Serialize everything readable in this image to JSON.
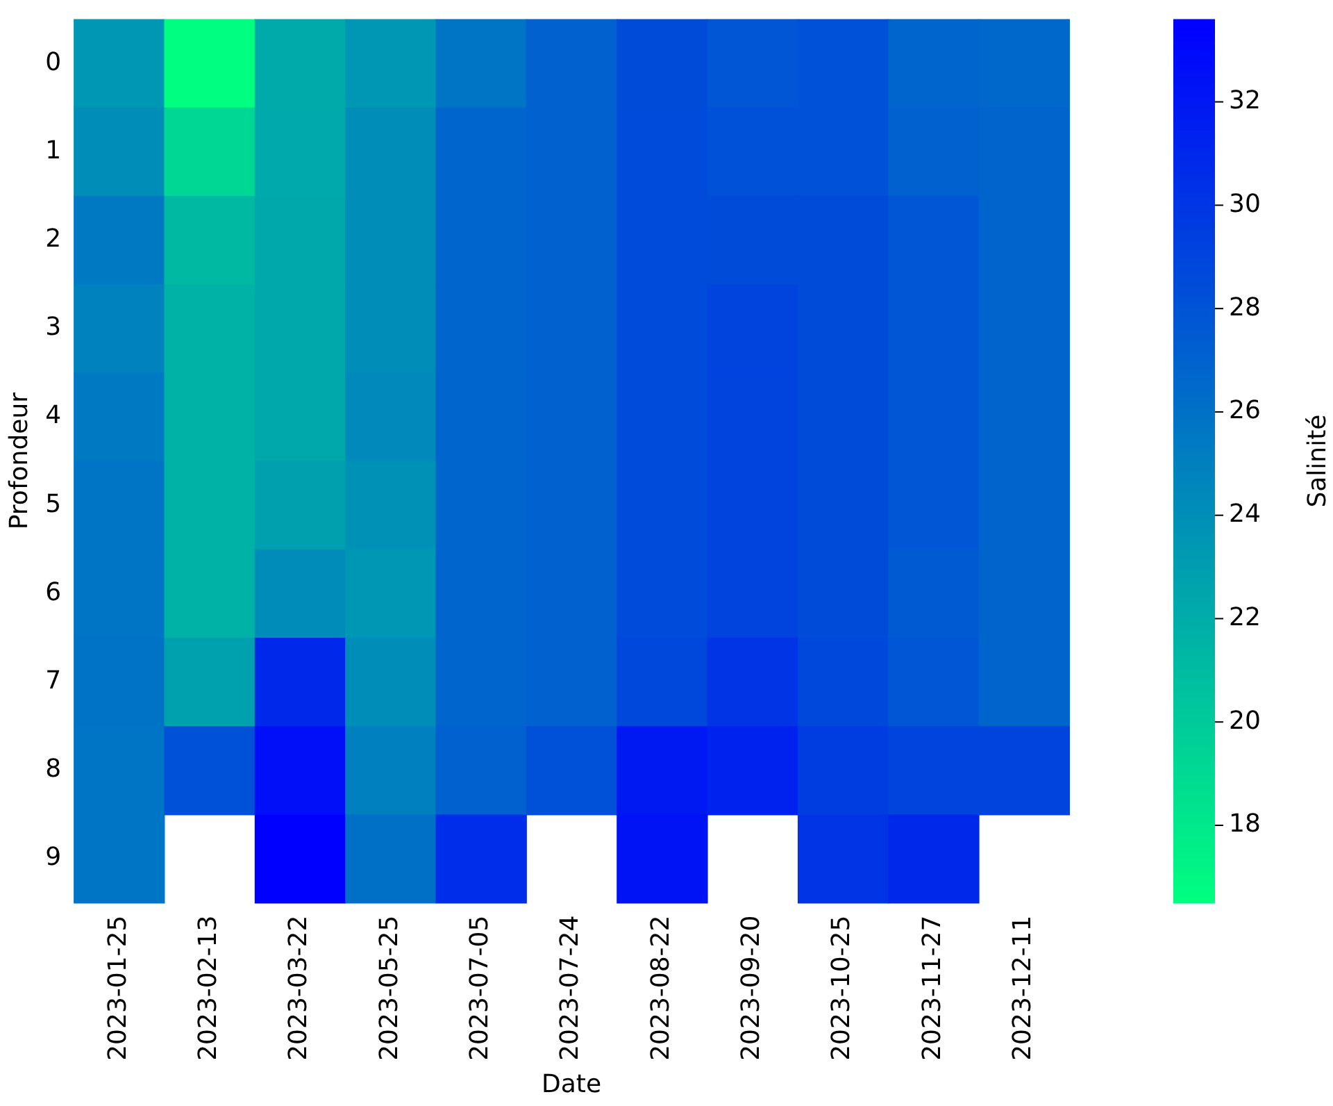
{
  "chart_data": {
    "type": "heatmap",
    "xlabel": "Date",
    "ylabel": "Profondeur",
    "clabel": "Salinité",
    "categories": [
      "2023-01-25",
      "2023-02-13",
      "2023-03-22",
      "2023-05-25",
      "2023-07-05",
      "2023-07-24",
      "2023-08-22",
      "2023-09-20",
      "2023-10-25",
      "2023-11-27",
      "2023-12-11"
    ],
    "y_categories": [
      "0",
      "1",
      "2",
      "3",
      "4",
      "5",
      "6",
      "7",
      "8",
      "9"
    ],
    "cells": [
      [
        23.5,
        16.6,
        22.2,
        23.5,
        25.8,
        27.1,
        28.5,
        27.8,
        28.2,
        26.8,
        26.6
      ],
      [
        24.1,
        19.2,
        22.3,
        24.1,
        26.8,
        27.1,
        28.6,
        28.2,
        28.2,
        27.1,
        26.9
      ],
      [
        25.5,
        21.2,
        22.4,
        24.1,
        26.8,
        27.1,
        28.6,
        28.5,
        28.5,
        27.8,
        26.9
      ],
      [
        24.9,
        21.7,
        22.4,
        24.1,
        26.8,
        27.1,
        28.6,
        29.1,
        28.5,
        27.8,
        26.9
      ],
      [
        25.5,
        21.7,
        22.4,
        24.4,
        26.8,
        27.1,
        28.6,
        29.1,
        28.5,
        27.8,
        26.9
      ],
      [
        25.8,
        21.7,
        22.9,
        23.8,
        26.8,
        27.1,
        28.6,
        29.1,
        28.5,
        27.8,
        26.9
      ],
      [
        25.8,
        21.7,
        24.2,
        23.5,
        26.8,
        27.1,
        28.6,
        29.1,
        28.5,
        27.5,
        26.9
      ],
      [
        25.9,
        22.8,
        30.9,
        24.1,
        26.8,
        27.1,
        28.8,
        30.1,
        28.8,
        27.8,
        26.9
      ],
      [
        25.8,
        28.2,
        32.6,
        25.0,
        27.1,
        28.2,
        31.9,
        31.3,
        29.5,
        29.1,
        29.1
      ],
      [
        25.8,
        null,
        33.6,
        26.1,
        30.6,
        null,
        32.3,
        null,
        30.1,
        30.9,
        null
      ]
    ],
    "clim": [
      16.5,
      33.6
    ],
    "cticks": [
      18,
      20,
      22,
      24,
      26,
      28,
      30,
      32
    ]
  }
}
